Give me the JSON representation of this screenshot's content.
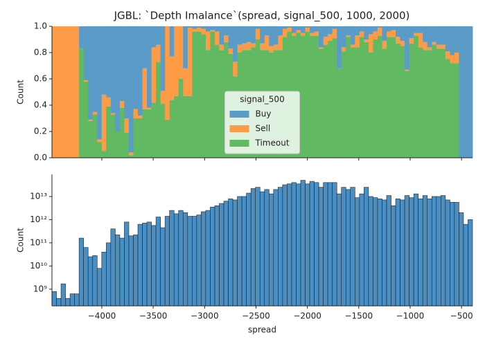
{
  "chart_data": [
    {
      "type": "histogram",
      "stacked": true,
      "title": "JGBL: `Depth Imalance`(spread, signal_500, 1000, 2000)",
      "ylabel": "Count",
      "legend_title": "signal_500",
      "legend": "lower center",
      "bins": [
        -4485,
        -4441,
        -4397,
        -4353,
        -4309,
        -4265,
        -4221,
        -4177,
        -4133,
        -4089,
        -4045,
        -4001,
        -3957,
        -3913,
        -3869,
        -3825,
        -3781,
        -3737,
        -3693,
        -3649,
        -3605,
        -3561,
        -3517,
        -3473,
        -3429,
        -3385,
        -3341,
        -3297,
        -3253,
        -3209,
        -3165,
        -3121,
        -3077,
        -3033,
        -2989,
        -2945,
        -2901,
        -2857,
        -2813,
        -2769,
        -2725,
        -2681,
        -2637,
        -2593,
        -2549,
        -2505,
        -2461,
        -2417,
        -2373,
        -2329,
        -2285,
        -2241,
        -2197,
        -2153,
        -2109,
        -2065,
        -2021,
        -1977,
        -1933,
        -1889,
        -1845,
        -1801,
        -1757,
        -1713,
        -1669,
        -1625,
        -1581,
        -1537,
        -1493,
        -1449,
        -1405,
        -1361,
        -1317,
        -1273,
        -1229,
        -1185,
        -1141,
        -1097,
        -1053,
        -1009,
        -965,
        -921,
        -877,
        -833,
        -789,
        -745,
        -701,
        -657,
        -613,
        -569,
        -525,
        -481,
        -437,
        -393
      ],
      "series": [
        {
          "name": "Buy",
          "color": "#5a9bc7",
          "values": [
            0,
            0,
            0,
            0,
            0,
            0,
            0.17,
            0.41,
            0.71,
            0.65,
            0.86,
            0.52,
            0.54,
            0.66,
            0.8,
            0.57,
            0.7,
            0.96,
            0.63,
            0.68,
            0.32,
            0.62,
            0.16,
            0.14,
            0.49,
            0,
            0.23,
            0,
            0,
            0.32,
            0.01,
            0.02,
            0.01,
            0.02,
            0.04,
            0.03,
            0.04,
            0.14,
            0.07,
            0.17,
            0.27,
            0.14,
            0.13,
            0.12,
            0.13,
            0.02,
            0.13,
            0.07,
            0.15,
            0.14,
            0.07,
            0.02,
            0.01,
            0.05,
            0.03,
            0.05,
            0.01,
            0.05,
            0.04,
            0.16,
            0.08,
            0.06,
            0.02,
            0.32,
            0.16,
            0.07,
            0.14,
            0.07,
            0.04,
            0.1,
            0.06,
            0.04,
            0.01,
            0.11,
            0.04,
            0.03,
            0.08,
            0.11,
            0.33,
            0.09,
            0.05,
            0.05,
            0.12,
            0.16,
            0.12,
            0.14,
            0.14,
            0.19,
            0.22,
            0.2,
            1,
            1,
            1
          ]
        },
        {
          "name": "Sell",
          "color": "#fd9b47",
          "values": [
            1,
            1,
            1,
            1,
            1,
            1,
            0,
            0.01,
            0.01,
            0.02,
            0.02,
            0.43,
            0.07,
            0.01,
            0,
            0.05,
            0.11,
            0.02,
            0.07,
            0.02,
            0.31,
            0.01,
            0.42,
            0.13,
            0.1,
            0.71,
            0.33,
            0.53,
            0.4,
            0.21,
            0.52,
            0.02,
            0.03,
            0.04,
            0.14,
            0.01,
            0.1,
            0.04,
            0.05,
            0.04,
            0.11,
            0.06,
            0.05,
            0.06,
            0.03,
            0.08,
            0.05,
            0.11,
            0.05,
            0.04,
            0.11,
            0.06,
            0.03,
            0.02,
            0.02,
            0.02,
            0.03,
            0.02,
            0.03,
            0.01,
            0.06,
            0.05,
            0.07,
            0,
            0.03,
            0.01,
            0.02,
            0.09,
            0.04,
            0.02,
            0.14,
            0.06,
            0.06,
            0.06,
            0.04,
            0.05,
            0.05,
            0.04,
            0.01,
            0.04,
            0.02,
            0.11,
            0.06,
            0.02,
            0.02,
            0.03,
            0.03,
            0.06,
            0.06,
            0.08,
            0,
            0,
            0
          ]
        },
        {
          "name": "Timeout",
          "color": "#61b961",
          "values": [
            0,
            0,
            0,
            0,
            0,
            0,
            0.83,
            0.58,
            0.28,
            0.33,
            0.12,
            0.05,
            0.39,
            0.33,
            0.2,
            0.38,
            0.19,
            0.02,
            0.3,
            0.3,
            0.37,
            0.37,
            0.42,
            0.73,
            0.41,
            0.29,
            0.44,
            0.47,
            0.6,
            0.47,
            0.47,
            0.96,
            0.96,
            0.94,
            0.82,
            0.96,
            0.86,
            0.82,
            0.88,
            0.79,
            0.62,
            0.8,
            0.82,
            0.82,
            0.84,
            0.9,
            0.82,
            0.82,
            0.8,
            0.82,
            0.82,
            0.92,
            0.96,
            0.93,
            0.95,
            0.93,
            0.96,
            0.93,
            0.93,
            0.83,
            0.86,
            0.89,
            0.91,
            0.68,
            0.81,
            0.92,
            0.84,
            0.84,
            0.92,
            0.88,
            0.8,
            0.9,
            0.93,
            0.83,
            0.92,
            0.92,
            0.87,
            0.85,
            0.66,
            0.87,
            0.93,
            0.84,
            0.82,
            0.82,
            0.86,
            0.83,
            0.83,
            0.75,
            0.72,
            0.72,
            0,
            0,
            0
          ]
        }
      ],
      "xlim": [
        -4485,
        -393
      ],
      "xticks": [
        -4000,
        -3500,
        -3000,
        -2500,
        -2000,
        -1500,
        -1000,
        -500
      ],
      "ylim": [
        0,
        1
      ],
      "yticks": [
        {
          "value": 0,
          "label": "0.0"
        },
        0.2,
        0.4,
        0.6,
        0.8,
        {
          "value": 1,
          "label": "1.0"
        }
      ]
    },
    {
      "type": "histogram",
      "ylog": true,
      "xlabel": "spread",
      "ylabel": "Count",
      "color": "#4a8fc3",
      "bins": [
        -4485,
        -4441,
        -4397,
        -4353,
        -4309,
        -4265,
        -4221,
        -4177,
        -4133,
        -4089,
        -4045,
        -4001,
        -3957,
        -3913,
        -3869,
        -3825,
        -3781,
        -3737,
        -3693,
        -3649,
        -3605,
        -3561,
        -3517,
        -3473,
        -3429,
        -3385,
        -3341,
        -3297,
        -3253,
        -3209,
        -3165,
        -3121,
        -3077,
        -3033,
        -2989,
        -2945,
        -2901,
        -2857,
        -2813,
        -2769,
        -2725,
        -2681,
        -2637,
        -2593,
        -2549,
        -2505,
        -2461,
        -2417,
        -2373,
        -2329,
        -2285,
        -2241,
        -2197,
        -2153,
        -2109,
        -2065,
        -2021,
        -1977,
        -1933,
        -1889,
        -1845,
        -1801,
        -1757,
        -1713,
        -1669,
        -1625,
        -1581,
        -1537,
        -1493,
        -1449,
        -1405,
        -1361,
        -1317,
        -1273,
        -1229,
        -1185,
        -1141,
        -1097,
        -1053,
        -1009,
        -965,
        -921,
        -877,
        -833,
        -789,
        -745,
        -701,
        -657,
        -613,
        -569,
        -525,
        -481,
        -437,
        -393
      ],
      "values": [
        790000000.0,
        400000000.0,
        1700000000.0,
        400000000.0,
        630000000.0,
        630000000.0,
        160000000000.0,
        63000000000.0,
        25000000000.0,
        28000000000.0,
        7900000000.0,
        40000000000.0,
        100000000000.0,
        400000000000.0,
        220000000000.0,
        160000000000.0,
        790000000000.0,
        200000000000.0,
        220000000000.0,
        630000000000.0,
        710000000000.0,
        790000000000.0,
        560000000000.0,
        1300000000000.0,
        450000000000.0,
        1400000000000.0,
        2500000000000.0,
        1800000000000.0,
        2500000000000.0,
        2000000000000.0,
        1400000000000.0,
        1400000000000.0,
        1600000000000.0,
        2200000000000.0,
        2500000000000.0,
        3500000000000.0,
        4000000000000.0,
        5000000000000.0,
        6300000000000.0,
        7900000000000.0,
        7100000000000.0,
        10000000000000.0,
        10000000000000.0,
        14000000000000.0,
        22000000000000.0,
        25000000000000.0,
        16000000000000.0,
        20000000000000.0,
        13000000000000.0,
        20000000000000.0,
        25000000000000.0,
        32000000000000.0,
        35000000000000.0,
        40000000000000.0,
        35000000000000.0,
        50000000000000.0,
        35000000000000.0,
        45000000000000.0,
        40000000000000.0,
        25000000000000.0,
        40000000000000.0,
        40000000000000.0,
        40000000000000.0,
        13000000000000.0,
        25000000000000.0,
        20000000000000.0,
        25000000000000.0,
        8900000000000.0,
        13000000000000.0,
        25000000000000.0,
        10000000000000.0,
        8900000000000.0,
        7900000000000.0,
        7100000000000.0,
        11000000000000.0,
        4000000000000.0,
        7900000000000.0,
        7100000000000.0,
        11000000000000.0,
        8900000000000.0,
        13000000000000.0,
        7900000000000.0,
        11000000000000.0,
        7900000000000.0,
        10000000000000.0,
        10000000000000.0,
        11000000000000.0,
        7100000000000.0,
        5600000000000.0,
        5600000000000.0,
        2000000000000.0,
        630000000000.0,
        1000000000000.0
      ],
      "xlim": [
        -4485,
        -393
      ],
      "xticks": [
        {
          "value": -4000,
          "label": "−4000"
        },
        {
          "value": -3500,
          "label": "−3500"
        },
        {
          "value": -3000,
          "label": "−3000"
        },
        {
          "value": -2500,
          "label": "−2500"
        },
        {
          "value": -2000,
          "label": "−2000"
        },
        {
          "value": -1500,
          "label": "−1500"
        },
        {
          "value": -1000,
          "label": "−1000"
        },
        {
          "value": -500,
          "label": "−500"
        }
      ],
      "ylim": [
        190000000.0,
        90000000000000.0
      ],
      "yticks": [
        {
          "value": 1000000000.0,
          "label": "10⁹"
        },
        {
          "value": 10000000000.0,
          "label": "10¹⁰"
        },
        {
          "value": 100000000000.0,
          "label": "10¹¹"
        },
        {
          "value": 1000000000000.0,
          "label": "10¹²"
        },
        {
          "value": 10000000000000.0,
          "label": "10¹³"
        }
      ]
    }
  ]
}
